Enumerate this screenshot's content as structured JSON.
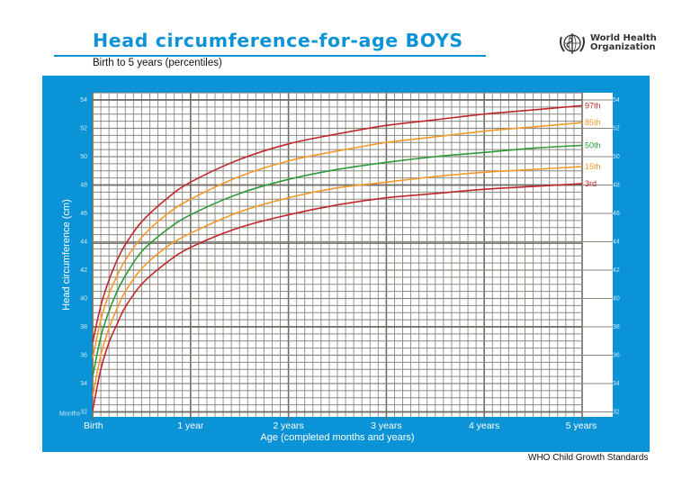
{
  "header": {
    "title": "Head circumference-for-age  BOYS",
    "subtitle": "Birth to 5 years (percentiles)",
    "logo_line1": "World Health",
    "logo_line2": "Organization",
    "logo_icon": "who-emblem-icon"
  },
  "footer": {
    "text": "WHO Child Growth Standards"
  },
  "colors": {
    "brand_blue": "#0a93d6",
    "title_blue": "#0c93d6",
    "p3": "#c0272d",
    "p15": "#f39a2a",
    "p50": "#2e9a3a",
    "p85": "#f39a2a",
    "p97": "#c0272d",
    "grid": "#8a877f"
  },
  "chart_data": {
    "type": "line",
    "title": "Head circumference-for-age BOYS",
    "subtitle": "Birth to 5 years (percentiles)",
    "xlabel": "Age (completed months and years)",
    "ylabel": "Head circumference (cm)",
    "x_unit": "months",
    "xlim": [
      0,
      60
    ],
    "ylim": [
      31.5,
      54.5
    ],
    "x_ticks": [
      {
        "value": 0,
        "label": "Birth"
      },
      {
        "value": 12,
        "label": "1 year"
      },
      {
        "value": 24,
        "label": "2 years"
      },
      {
        "value": 36,
        "label": "3 years"
      },
      {
        "value": 48,
        "label": "4 years"
      },
      {
        "value": 60,
        "label": "5 years"
      }
    ],
    "y_ticks": [
      32,
      34,
      36,
      38,
      40,
      42,
      44,
      46,
      48,
      50,
      52,
      54
    ],
    "months_label": "Months",
    "grid": true,
    "legend_position": "right-end-labels",
    "x": [
      0,
      1,
      2,
      3,
      4,
      6,
      9,
      12,
      18,
      24,
      30,
      36,
      42,
      48,
      54,
      60
    ],
    "series": [
      {
        "name": "97th",
        "color": "#c0272d",
        "values": [
          36.9,
          39.5,
          41.3,
          42.7,
          43.8,
          45.4,
          47.0,
          48.2,
          49.8,
          50.9,
          51.6,
          52.2,
          52.6,
          53.0,
          53.3,
          53.6
        ]
      },
      {
        "name": "85th",
        "color": "#f39a2a",
        "values": [
          35.8,
          38.5,
          40.3,
          41.6,
          42.7,
          44.3,
          45.9,
          47.0,
          48.6,
          49.7,
          50.4,
          51.0,
          51.4,
          51.8,
          52.1,
          52.4
        ]
      },
      {
        "name": "50th",
        "color": "#2e9a3a",
        "values": [
          34.5,
          37.3,
          39.1,
          40.5,
          41.6,
          43.3,
          44.8,
          45.9,
          47.4,
          48.4,
          49.1,
          49.6,
          50.0,
          50.3,
          50.6,
          50.8
        ]
      },
      {
        "name": "15th",
        "color": "#f39a2a",
        "values": [
          33.1,
          36.0,
          37.9,
          39.3,
          40.5,
          42.1,
          43.6,
          44.6,
          46.1,
          47.1,
          47.8,
          48.2,
          48.6,
          48.9,
          49.1,
          49.3
        ]
      },
      {
        "name": "3rd",
        "color": "#c0272d",
        "values": [
          32.1,
          35.0,
          36.9,
          38.2,
          39.4,
          41.0,
          42.5,
          43.6,
          45.0,
          45.9,
          46.6,
          47.1,
          47.4,
          47.7,
          47.9,
          48.1
        ]
      }
    ]
  }
}
